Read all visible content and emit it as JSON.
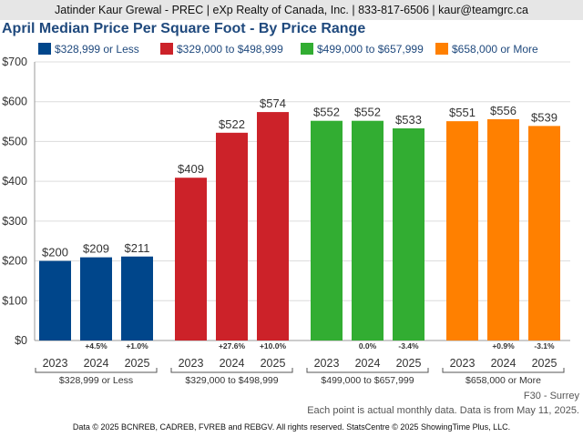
{
  "header": {
    "text": "Jatinder Kaur Grewal - PREC | eXp Realty of Canada, Inc. | 833-817-6506 | kaur@teamgrc.ca"
  },
  "title": "April Median Price Per Square Foot - By Price Range",
  "legend": [
    {
      "label": "$328,999 or Less",
      "color": "#00468b"
    },
    {
      "label": "$329,000 to $498,999",
      "color": "#cc2229"
    },
    {
      "label": "$499,000 to $657,999",
      "color": "#32ad32"
    },
    {
      "label": "$658,000 or More",
      "color": "#ff8000"
    }
  ],
  "chart_data": {
    "type": "bar",
    "ylim": [
      0,
      700
    ],
    "yticks": [
      "$0",
      "$100",
      "$200",
      "$300",
      "$400",
      "$500",
      "$600",
      "$700"
    ],
    "groups": [
      {
        "name": "$328,999 or Less",
        "color": "#00468b",
        "years": [
          "2023",
          "2024",
          "2025"
        ],
        "values": [
          200,
          209,
          211
        ],
        "labels": [
          "$200",
          "$209",
          "$211"
        ],
        "changes": [
          "",
          "+4.5%",
          "+1.0%"
        ]
      },
      {
        "name": "$329,000 to $498,999",
        "color": "#cc2229",
        "years": [
          "2023",
          "2024",
          "2025"
        ],
        "values": [
          409,
          522,
          574
        ],
        "labels": [
          "$409",
          "$522",
          "$574"
        ],
        "changes": [
          "",
          "+27.6%",
          "+10.0%"
        ]
      },
      {
        "name": "$499,000 to $657,999",
        "color": "#32ad32",
        "years": [
          "2023",
          "2024",
          "2025"
        ],
        "values": [
          552,
          552,
          533
        ],
        "labels": [
          "$552",
          "$552",
          "$533"
        ],
        "changes": [
          "",
          "0.0%",
          "-3.4%"
        ]
      },
      {
        "name": "$658,000 or More",
        "color": "#ff8000",
        "years": [
          "2023",
          "2024",
          "2025"
        ],
        "values": [
          551,
          556,
          539
        ],
        "labels": [
          "$551",
          "$556",
          "$539"
        ],
        "changes": [
          "",
          "+0.9%",
          "-3.1%"
        ]
      }
    ]
  },
  "footer": {
    "area": "F30 - Surrey",
    "note": "Each point is actual monthly data. Data is from May 11, 2025.",
    "source": "Data © 2025 BCNREB, CADREB, FVREB and REBGV. All rights reserved. StatsCentre © 2025 ShowingTime Plus, LLC."
  }
}
